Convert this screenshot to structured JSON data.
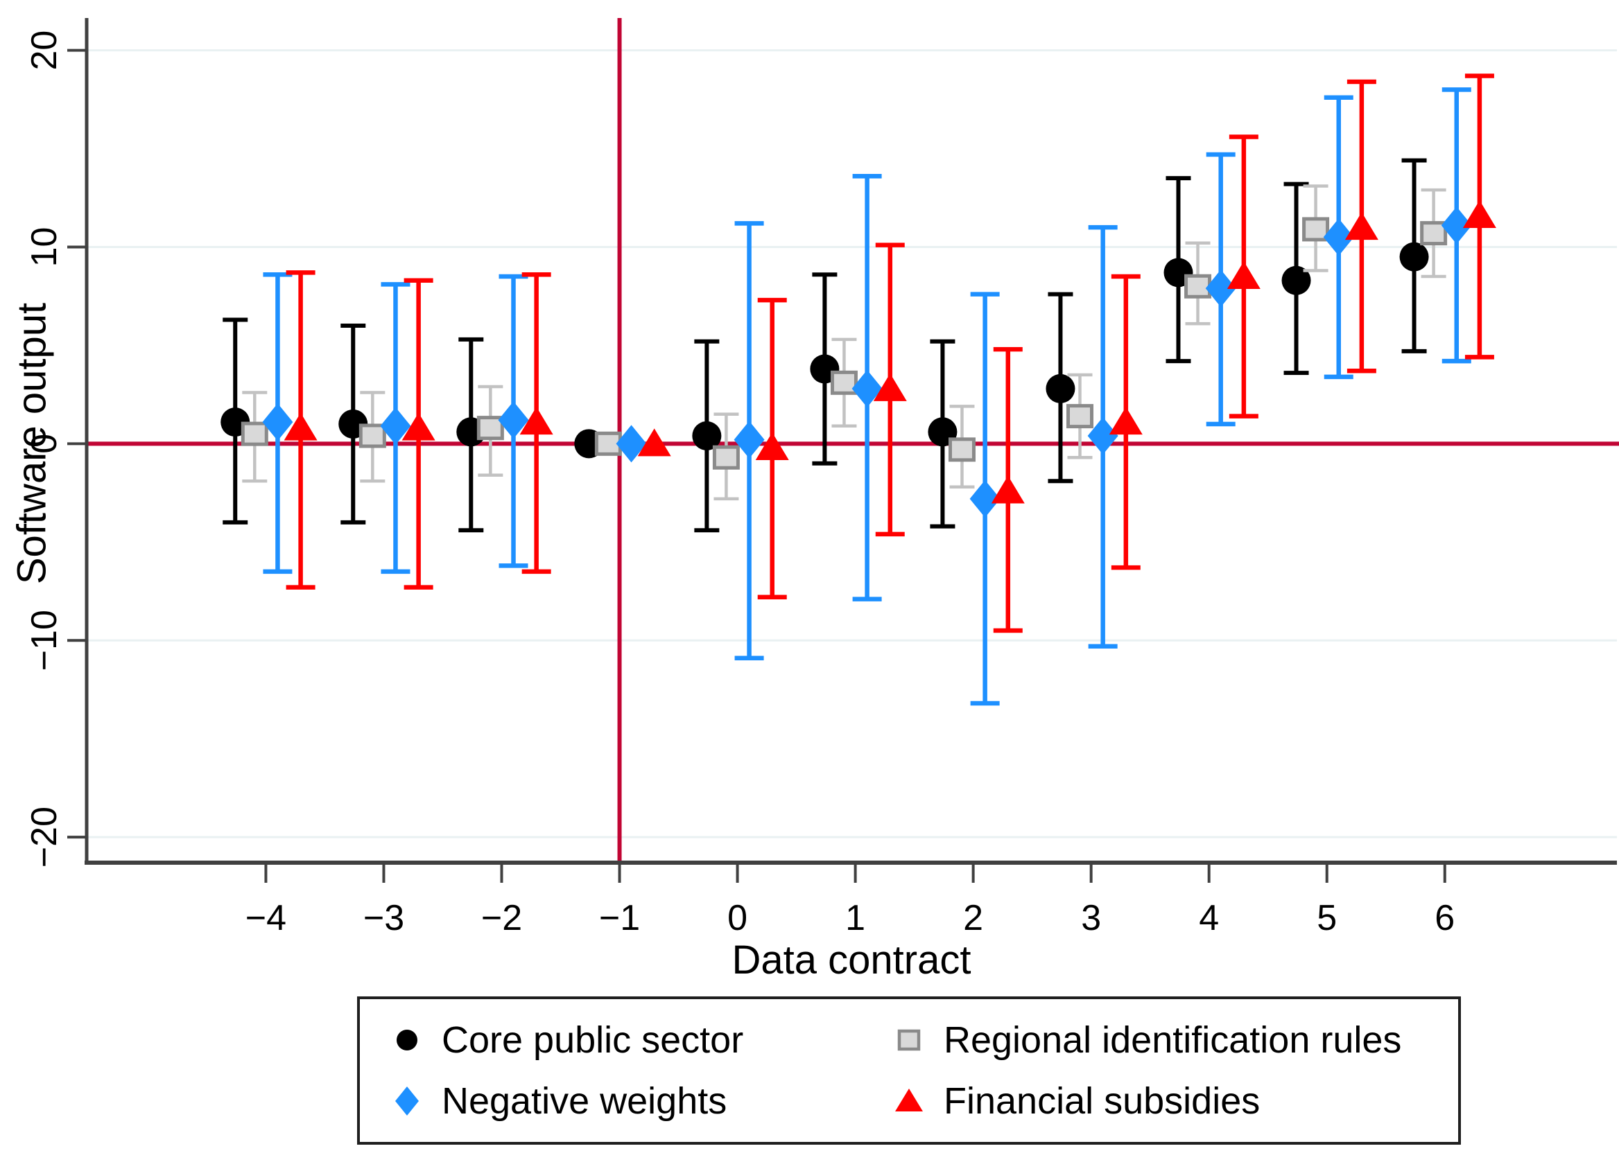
{
  "figure": {
    "background": "#ffffff",
    "axis_color": "#404040",
    "grid_color": "#e9f1f2",
    "text_color": "#000000",
    "ref_line_color": "#c10534"
  },
  "chart_data": {
    "type": "scatter",
    "title": "",
    "xlabel": "Data contract",
    "ylabel": "Software output",
    "x": [
      -4,
      -3,
      -2,
      -1,
      0,
      1,
      2,
      3,
      4,
      5,
      6
    ],
    "x_tick_labels": [
      "−4",
      "−3",
      "−2",
      "−1",
      "0",
      "1",
      "2",
      "3",
      "4",
      "5",
      "6"
    ],
    "y_ticks": [
      20,
      10,
      0,
      -10,
      -20
    ],
    "y_tick_labels": [
      "20",
      "10",
      "0",
      "−10",
      "−20"
    ],
    "xlim": [
      -5.52,
      7.46
    ],
    "ylim": [
      -21.3,
      21.5
    ],
    "grid": true,
    "grid_y": [
      20,
      10,
      -10,
      -20
    ],
    "legend_position": "bottom",
    "ref_vline_x": -1,
    "ref_hline_y": 0,
    "series": [
      {
        "name": "Core public sector",
        "marker": "circle",
        "color": "#000000",
        "offset": -0.26,
        "values": [
          1.1,
          1.0,
          0.6,
          0,
          0.4,
          3.8,
          0.6,
          2.8,
          8.7,
          8.3,
          9.5
        ],
        "ci_low": [
          -4.0,
          -4.0,
          -4.4,
          0,
          -4.4,
          -1.0,
          -4.2,
          -1.9,
          4.2,
          3.6,
          4.7
        ],
        "ci_high": [
          6.3,
          6.0,
          5.3,
          0,
          5.2,
          8.6,
          5.2,
          7.6,
          13.5,
          13.2,
          14.4
        ]
      },
      {
        "name": "Regional identification rules",
        "marker": "square",
        "color": "#c2c2c2",
        "marker_fill": "#d9d9d9",
        "marker_stroke": "#8a8a8a",
        "offset": -0.095,
        "values": [
          0.5,
          0.4,
          0.8,
          0,
          -0.7,
          3.1,
          -0.3,
          1.4,
          8.0,
          10.9,
          10.7
        ],
        "ci_low": [
          -1.9,
          -1.9,
          -1.6,
          -0.3,
          -2.8,
          0.9,
          -2.2,
          -0.7,
          6.1,
          8.8,
          8.5
        ],
        "ci_high": [
          2.6,
          2.6,
          2.9,
          0.3,
          1.5,
          5.3,
          1.9,
          3.5,
          10.2,
          13.1,
          12.9
        ]
      },
      {
        "name": "Negative weights",
        "marker": "diamond",
        "color": "#1e90ff",
        "offset": 0.1,
        "values": [
          1.1,
          0.9,
          1.2,
          0,
          0.2,
          2.8,
          -2.8,
          0.4,
          7.9,
          10.5,
          11.1
        ],
        "ci_low": [
          -6.5,
          -6.5,
          -6.2,
          0,
          -10.9,
          -7.9,
          -13.2,
          -10.3,
          1.0,
          3.4,
          4.2
        ],
        "ci_high": [
          8.6,
          8.1,
          8.5,
          0,
          11.2,
          13.6,
          7.6,
          11.0,
          14.7,
          17.6,
          18.0
        ]
      },
      {
        "name": "Financial subsidies",
        "marker": "triangle",
        "color": "#ff0000",
        "offset": 0.295,
        "values": [
          0.8,
          0.8,
          1.1,
          0,
          -0.2,
          2.8,
          -2.4,
          1.1,
          8.5,
          11.0,
          11.6
        ],
        "ci_low": [
          -7.3,
          -7.3,
          -6.5,
          0,
          -7.8,
          -4.6,
          -9.5,
          -6.3,
          1.4,
          3.7,
          4.4
        ],
        "ci_high": [
          8.7,
          8.3,
          8.6,
          0,
          7.3,
          10.1,
          4.8,
          8.5,
          15.6,
          18.4,
          18.7
        ]
      }
    ]
  }
}
